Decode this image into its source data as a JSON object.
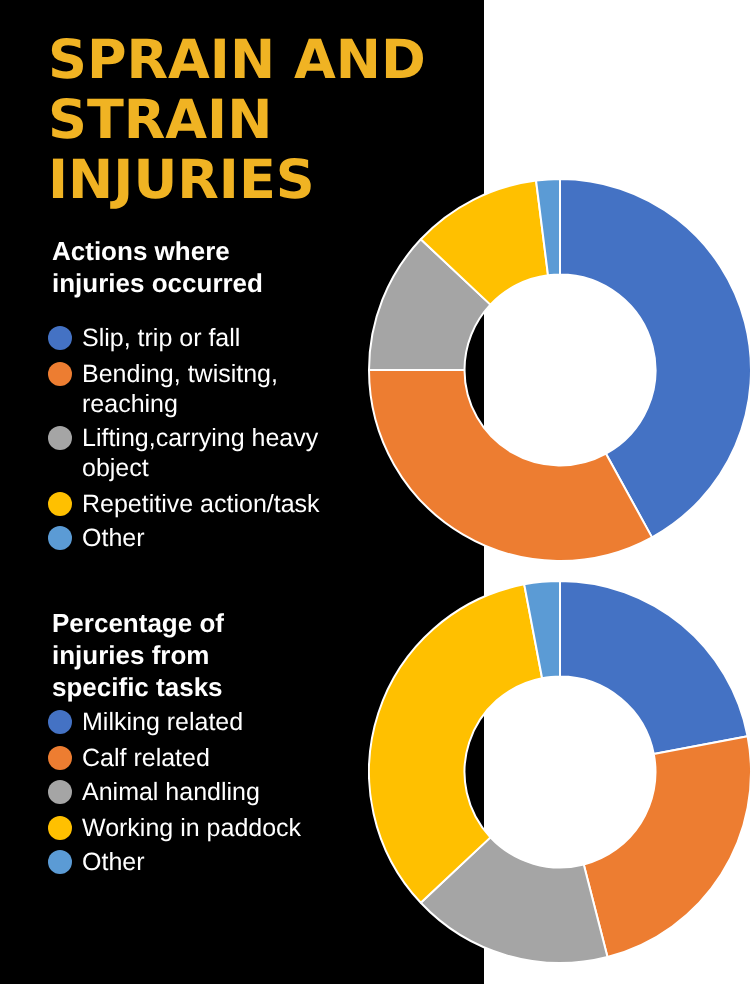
{
  "chart_data": [
    {
      "type": "donut",
      "title": "SPRAIN AND STRAIN INJURIES",
      "legend_title": "Actions where injuries occurred",
      "legend": "left",
      "categories": [
        "Slip, trip or fall",
        "Bending, twisitng, reaching",
        "Lifting,carrying heavy object",
        "Repetitive action/task",
        "Other"
      ],
      "values": [
        42,
        33,
        12,
        11,
        2
      ],
      "colors": [
        "#4472c4",
        "#ed7d31",
        "#a5a5a5",
        "#ffc000",
        "#5b9bd5"
      ]
    },
    {
      "type": "donut",
      "legend_title": "Percentage of injuries from specific tasks",
      "legend": "left",
      "categories": [
        "Milking related",
        "Calf related",
        "Animal handling",
        "Working in paddock",
        "Other"
      ],
      "values": [
        22,
        24,
        17,
        34,
        3
      ],
      "colors": [
        "#4472c4",
        "#ed7d31",
        "#a5a5a5",
        "#ffc000",
        "#5b9bd5"
      ]
    }
  ]
}
